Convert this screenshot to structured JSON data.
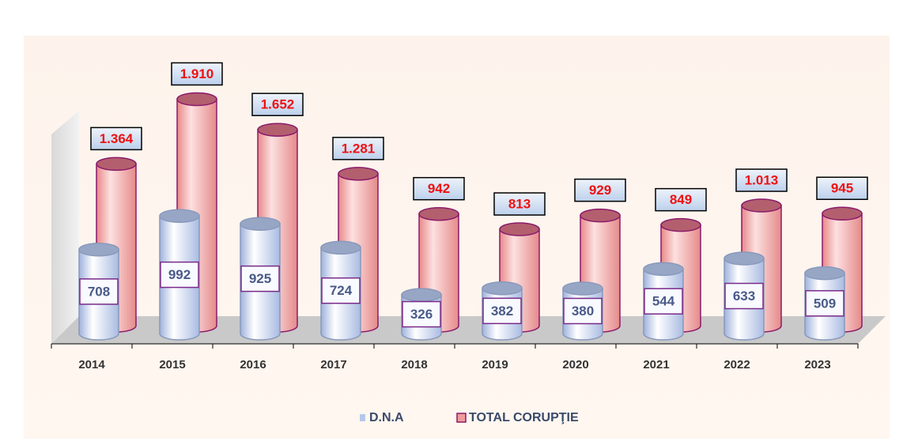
{
  "chart_data": {
    "type": "cylinder_bar",
    "categories": [
      "2014",
      "2015",
      "2016",
      "2017",
      "2018",
      "2019",
      "2020",
      "2021",
      "2022",
      "2023"
    ],
    "series": [
      {
        "name": "D.N.A",
        "color": "#b7c7ea",
        "values": [
          708,
          992,
          925,
          724,
          326,
          382,
          380,
          544,
          633,
          509
        ]
      },
      {
        "name": "TOTAL CORUPŢIE",
        "color": "#ef9c9c",
        "values": [
          1364,
          1910,
          1652,
          1281,
          942,
          813,
          929,
          849,
          1013,
          945
        ],
        "value_labels": [
          "1.364",
          "1.910",
          "1.652",
          "1.281",
          "942",
          "813",
          "929",
          "849",
          "1.013",
          "945"
        ]
      }
    ],
    "ylim": [
      0,
      2000
    ],
    "legend": "bottom"
  }
}
